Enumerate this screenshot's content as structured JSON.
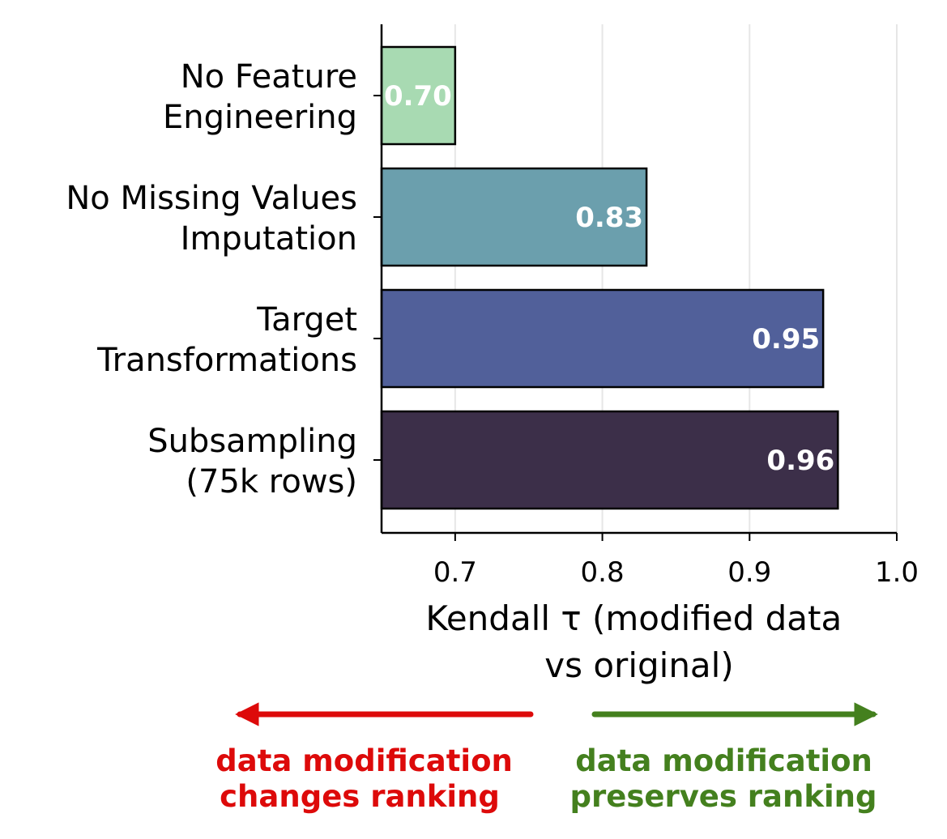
{
  "chart_data": {
    "type": "bar",
    "orientation": "horizontal",
    "categories": [
      [
        "No Feature",
        "Engineering"
      ],
      [
        "No Missing Values",
        "Imputation"
      ],
      [
        "Target",
        "Transformations"
      ],
      [
        "Subsampling",
        "(75k rows)"
      ]
    ],
    "values": [
      0.7,
      0.83,
      0.95,
      0.96
    ],
    "value_labels": [
      "0.70",
      "0.83",
      "0.95",
      "0.96"
    ],
    "bar_colors": [
      "#a8dab2",
      "#6b9fad",
      "#51609a",
      "#3c2f49"
    ],
    "xlim": [
      0.65,
      1.0
    ],
    "xticks": [
      0.7,
      0.8,
      0.9,
      1.0
    ],
    "xtick_labels": [
      "0.7",
      "0.8",
      "0.9",
      "1.0"
    ],
    "xlabel": [
      "Kendall τ (modified data",
      "vs original)"
    ],
    "grid": "x",
    "legend": "none"
  },
  "annotations": {
    "left_color": "#dd0a0a",
    "right_color": "#44801e",
    "left_text": [
      "data modification",
      "changes ranking"
    ],
    "right_text": [
      "data modification",
      "preserves ranking"
    ]
  }
}
